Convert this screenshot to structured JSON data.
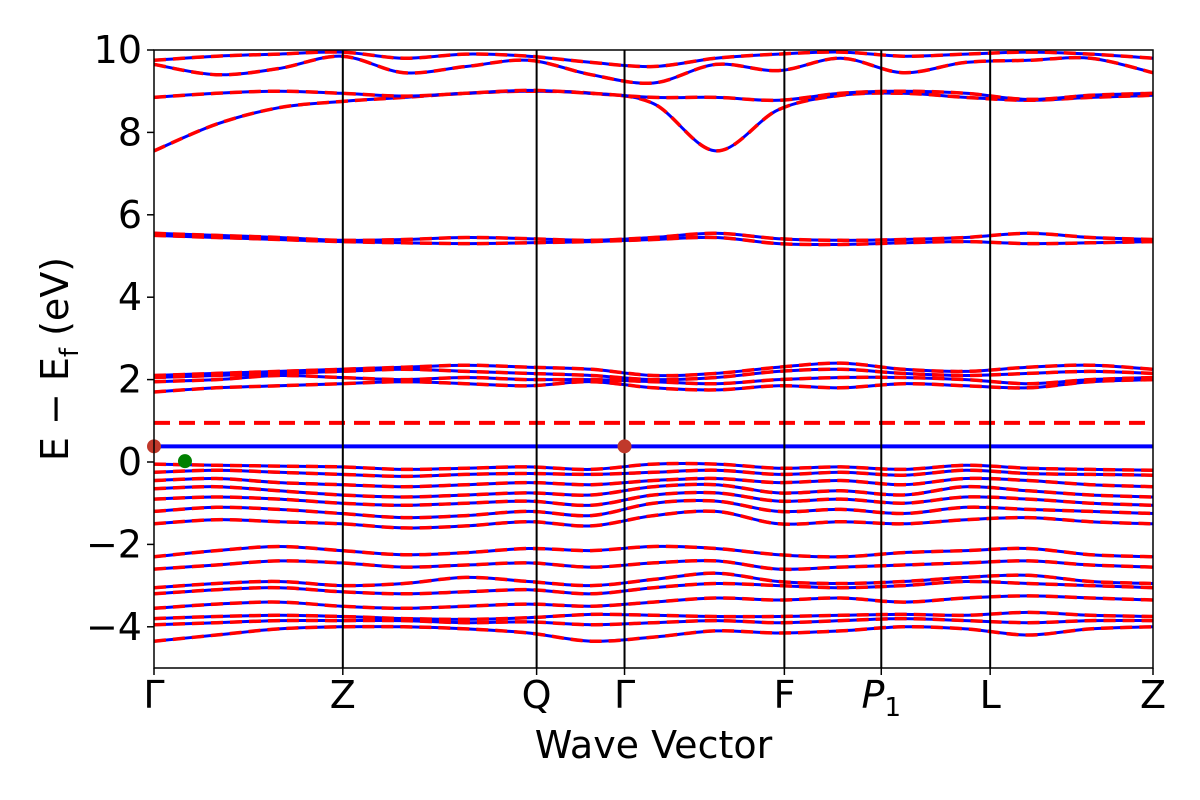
{
  "chart_data": {
    "type": "line",
    "xlabel": "Wave Vector",
    "ylabel_parts": {
      "main": "E − E",
      "sub": "f",
      "unit": " (eV)"
    },
    "ylim": [
      -5,
      10
    ],
    "yticks": [
      {
        "value": 10,
        "label": "10"
      },
      {
        "value": 8,
        "label": "8"
      },
      {
        "value": 6,
        "label": "6"
      },
      {
        "value": 4,
        "label": "4"
      },
      {
        "value": 2,
        "label": "2"
      },
      {
        "value": 0,
        "label": "0"
      },
      {
        "value": -2,
        "label": "−2"
      },
      {
        "value": -4,
        "label": "−4"
      }
    ],
    "xlim": [
      0,
      1
    ],
    "kpoints": [
      {
        "x": 0.0,
        "label": "Γ",
        "sub": ""
      },
      {
        "x": 0.189,
        "label": "Z",
        "sub": ""
      },
      {
        "x": 0.383,
        "label": "Q",
        "sub": ""
      },
      {
        "x": 0.471,
        "label": "Γ",
        "sub": ""
      },
      {
        "x": 0.631,
        "label": "F",
        "sub": ""
      },
      {
        "x": 0.728,
        "label": "P",
        "sub": "1"
      },
      {
        "x": 0.837,
        "label": "L",
        "sub": ""
      },
      {
        "x": 1.0,
        "label": "Z",
        "sub": ""
      }
    ],
    "fermi_lines": [
      {
        "name": "",
        "y": 0.38,
        "color": "#0000ff",
        "style": "solid"
      },
      {
        "name": "",
        "y": 0.95,
        "color": "#ff0000",
        "style": "dashed"
      }
    ],
    "markers": [
      {
        "x": 0.0,
        "y": 0.38,
        "color": "#c0392b"
      },
      {
        "x": 0.471,
        "y": 0.38,
        "color": "#c0392b"
      },
      {
        "x": 0.031,
        "y": 0.02,
        "color": "#008000"
      }
    ],
    "spin_colors": {
      "up": "#0000ff",
      "down": "#ff0000"
    },
    "grid": false,
    "legend": "none",
    "bands": [
      [
        -4.35,
        -4.2,
        -4.05,
        -4.0,
        -4.0,
        -4.05,
        -4.15,
        -4.35,
        -4.25,
        -4.1,
        -4.15,
        -4.1,
        -4.0,
        -4.05,
        -4.2,
        -4.05,
        -4.0
      ],
      [
        -3.95,
        -3.9,
        -3.85,
        -3.85,
        -3.85,
        -3.9,
        -3.88,
        -3.95,
        -3.9,
        -3.85,
        -3.9,
        -3.85,
        -3.8,
        -3.85,
        -3.9,
        -3.85,
        -3.85
      ],
      [
        -3.8,
        -3.75,
        -3.72,
        -3.75,
        -3.8,
        -3.82,
        -3.78,
        -3.7,
        -3.72,
        -3.75,
        -3.75,
        -3.72,
        -3.7,
        -3.72,
        -3.65,
        -3.72,
        -3.75
      ],
      [
        -3.55,
        -3.45,
        -3.4,
        -3.5,
        -3.55,
        -3.5,
        -3.45,
        -3.5,
        -3.4,
        -3.3,
        -3.35,
        -3.3,
        -3.4,
        -3.3,
        -3.25,
        -3.3,
        -3.35
      ],
      [
        -3.2,
        -3.1,
        -3.05,
        -3.15,
        -3.2,
        -3.15,
        -3.1,
        -3.2,
        -3.05,
        -2.95,
        -3.0,
        -3.05,
        -3.0,
        -2.9,
        -2.95,
        -3.0,
        -3.05
      ],
      [
        -3.05,
        -2.95,
        -2.9,
        -3.0,
        -2.95,
        -2.8,
        -2.9,
        -3.0,
        -2.85,
        -2.7,
        -2.9,
        -2.95,
        -2.9,
        -2.8,
        -2.75,
        -2.9,
        -2.95
      ],
      [
        -2.6,
        -2.5,
        -2.4,
        -2.45,
        -2.55,
        -2.5,
        -2.45,
        -2.55,
        -2.45,
        -2.4,
        -2.6,
        -2.55,
        -2.5,
        -2.45,
        -2.4,
        -2.5,
        -2.55
      ],
      [
        -2.3,
        -2.15,
        -2.05,
        -2.15,
        -2.25,
        -2.2,
        -2.1,
        -2.15,
        -2.05,
        -2.1,
        -2.25,
        -2.3,
        -2.2,
        -2.15,
        -2.1,
        -2.25,
        -2.3
      ],
      [
        -1.5,
        -1.4,
        -1.45,
        -1.5,
        -1.6,
        -1.55,
        -1.45,
        -1.55,
        -1.3,
        -1.2,
        -1.5,
        -1.45,
        -1.5,
        -1.4,
        -1.35,
        -1.45,
        -1.5
      ],
      [
        -1.2,
        -1.1,
        -1.15,
        -1.25,
        -1.35,
        -1.3,
        -1.2,
        -1.3,
        -1.0,
        -0.95,
        -1.2,
        -1.15,
        -1.25,
        -1.1,
        -1.15,
        -1.2,
        -1.25
      ],
      [
        -0.9,
        -0.85,
        -0.9,
        -1.0,
        -1.05,
        -1.0,
        -0.95,
        -1.05,
        -0.8,
        -0.75,
        -0.95,
        -0.9,
        -1.0,
        -0.85,
        -0.9,
        -1.0,
        -1.05
      ],
      [
        -0.65,
        -0.6,
        -0.7,
        -0.8,
        -0.85,
        -0.8,
        -0.75,
        -0.8,
        -0.6,
        -0.55,
        -0.75,
        -0.7,
        -0.8,
        -0.6,
        -0.7,
        -0.8,
        -0.85
      ],
      [
        -0.45,
        -0.4,
        -0.5,
        -0.55,
        -0.6,
        -0.55,
        -0.5,
        -0.55,
        -0.45,
        -0.4,
        -0.5,
        -0.45,
        -0.55,
        -0.4,
        -0.45,
        -0.55,
        -0.6
      ],
      [
        -0.25,
        -0.2,
        -0.25,
        -0.3,
        -0.35,
        -0.3,
        -0.28,
        -0.3,
        -0.25,
        -0.2,
        -0.3,
        -0.25,
        -0.32,
        -0.2,
        -0.28,
        -0.3,
        -0.32
      ],
      [
        -0.05,
        -0.08,
        -0.1,
        -0.12,
        -0.18,
        -0.15,
        -0.12,
        -0.18,
        -0.05,
        -0.05,
        -0.15,
        -0.12,
        -0.18,
        -0.08,
        -0.15,
        -0.18,
        -0.2
      ],
      [
        1.7,
        1.8,
        1.85,
        1.9,
        1.95,
        1.9,
        1.85,
        1.95,
        1.8,
        1.75,
        1.85,
        1.8,
        1.9,
        1.85,
        1.8,
        1.95,
        2.0
      ],
      [
        1.95,
        2.0,
        2.1,
        2.05,
        2.0,
        2.05,
        2.0,
        2.0,
        1.95,
        1.9,
        2.0,
        2.05,
        2.05,
        2.0,
        1.9,
        2.0,
        2.05
      ],
      [
        2.05,
        2.1,
        2.15,
        2.2,
        2.25,
        2.2,
        2.15,
        2.1,
        2.0,
        2.05,
        2.2,
        2.25,
        2.15,
        2.1,
        2.15,
        2.2,
        2.15
      ],
      [
        2.1,
        2.15,
        2.2,
        2.25,
        2.3,
        2.35,
        2.3,
        2.25,
        2.1,
        2.15,
        2.3,
        2.4,
        2.25,
        2.2,
        2.3,
        2.35,
        2.25
      ],
      [
        5.5,
        5.45,
        5.4,
        5.35,
        5.32,
        5.3,
        5.32,
        5.35,
        5.4,
        5.45,
        5.3,
        5.28,
        5.32,
        5.35,
        5.3,
        5.32,
        5.35
      ],
      [
        5.55,
        5.5,
        5.45,
        5.38,
        5.4,
        5.45,
        5.42,
        5.38,
        5.45,
        5.55,
        5.42,
        5.38,
        5.4,
        5.45,
        5.55,
        5.45,
        5.4
      ],
      [
        7.55,
        8.2,
        8.6,
        8.75,
        8.85,
        8.95,
        9.0,
        8.95,
        8.7,
        7.55,
        8.55,
        8.9,
        8.95,
        8.85,
        8.78,
        8.85,
        8.9
      ],
      [
        8.85,
        8.95,
        9.0,
        8.95,
        8.88,
        8.95,
        9.02,
        8.95,
        8.85,
        8.85,
        8.78,
        8.95,
        9.0,
        8.95,
        8.8,
        8.9,
        8.95
      ],
      [
        9.65,
        9.4,
        9.55,
        9.85,
        9.45,
        9.6,
        9.75,
        9.4,
        9.2,
        9.65,
        9.5,
        9.8,
        9.45,
        9.7,
        9.75,
        9.8,
        9.45
      ],
      [
        9.75,
        9.85,
        9.9,
        9.95,
        9.8,
        9.9,
        9.85,
        9.7,
        9.6,
        9.8,
        9.9,
        9.95,
        9.85,
        9.9,
        9.95,
        9.9,
        9.8
      ]
    ]
  }
}
